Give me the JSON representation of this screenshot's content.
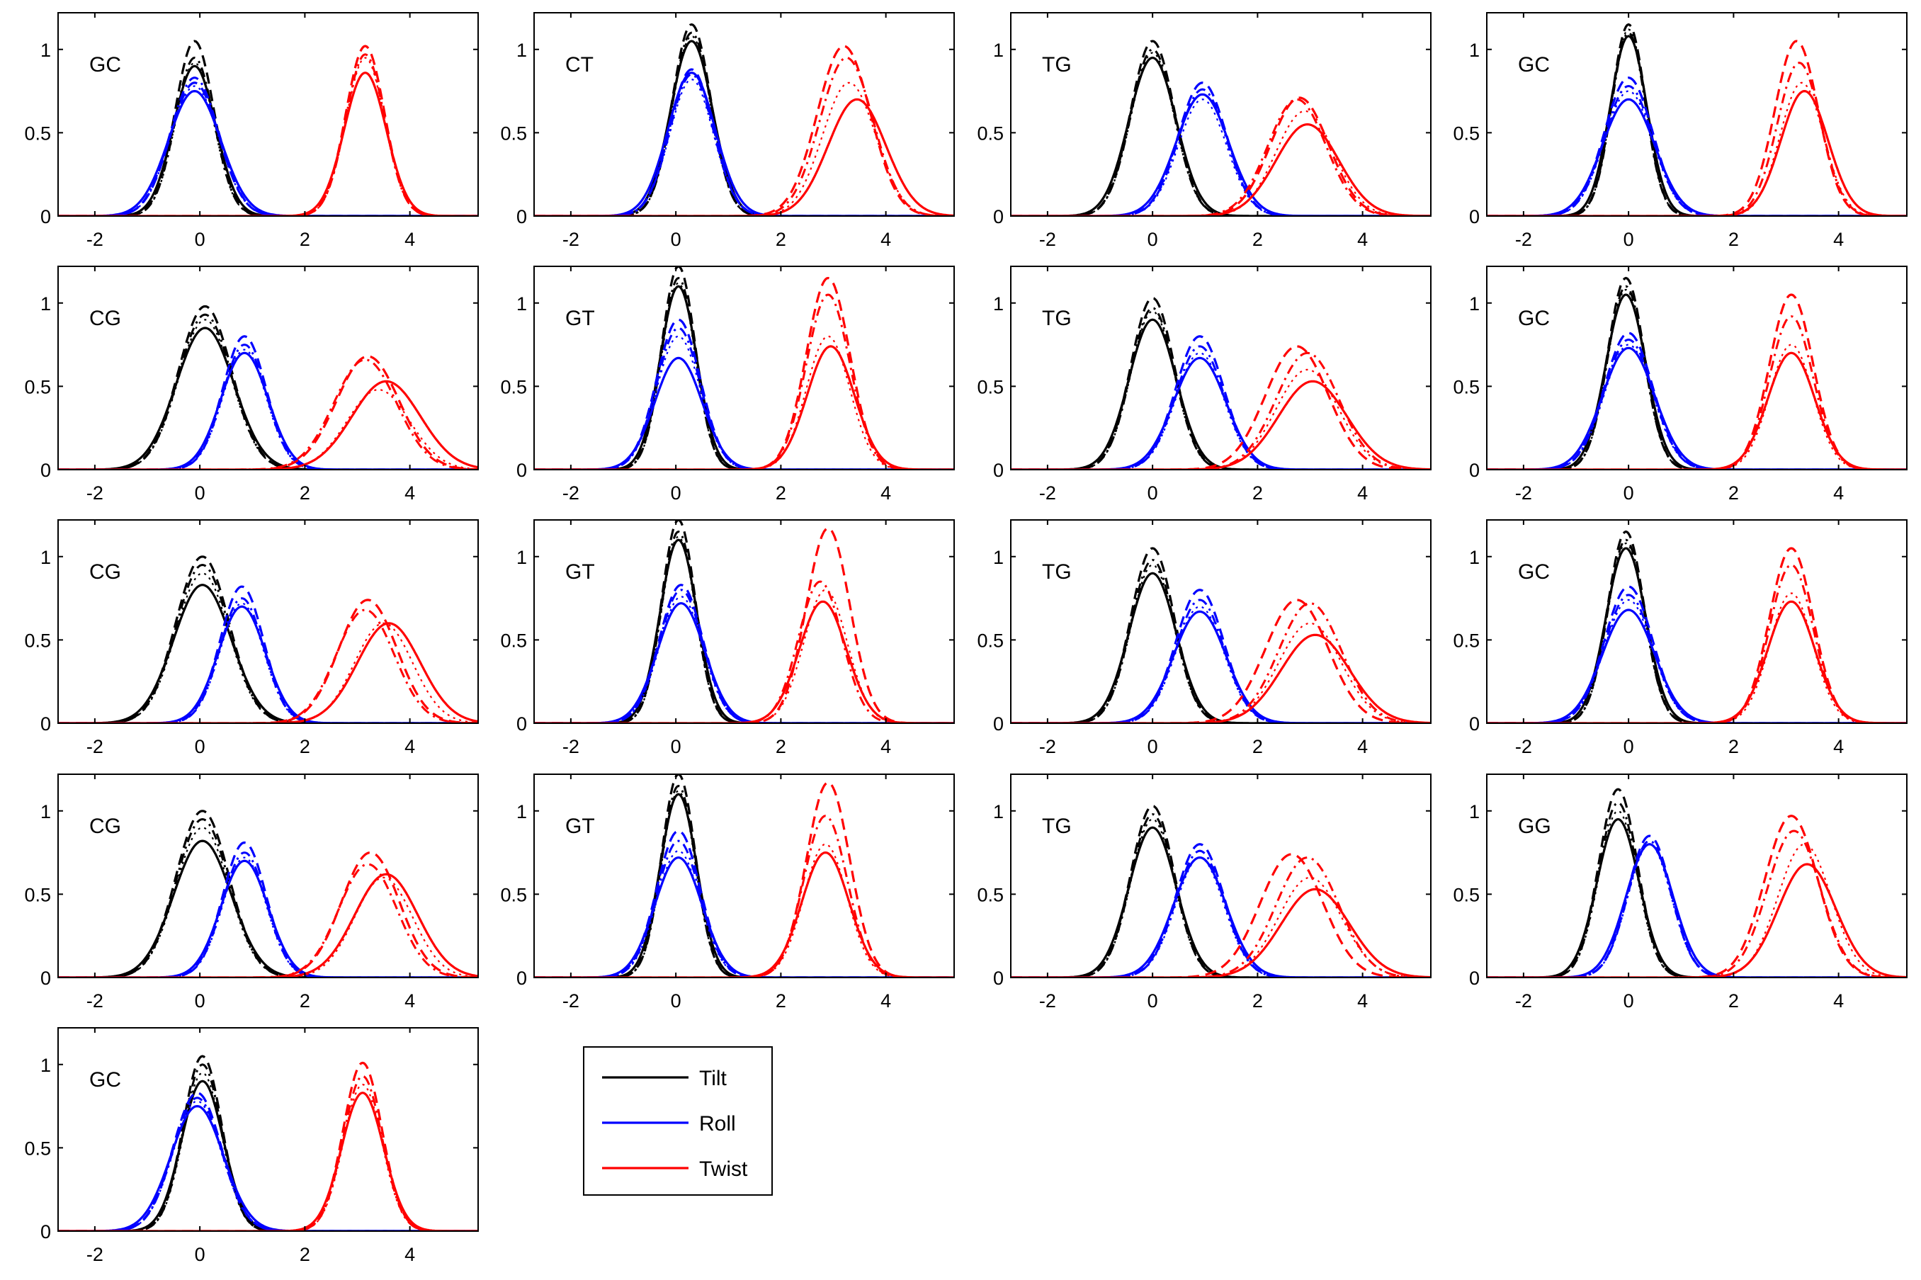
{
  "figure": {
    "series": [
      {
        "name": "Tilt",
        "color": "#000000"
      },
      {
        "name": "Roll",
        "color": "#0000ff"
      },
      {
        "name": "Twist",
        "color": "#ff0000"
      }
    ]
  },
  "chart_data": {
    "type": "line",
    "grid": false,
    "legend_placement": "bottom (standalone box beside last panel)",
    "xlim": [
      -2.7,
      5.3
    ],
    "ylim": [
      0,
      1.22
    ],
    "xticks": [
      -2,
      0,
      2,
      4
    ],
    "yticks": [
      0,
      0.5,
      1
    ],
    "line_styles": [
      "solid",
      "dashed",
      "dash-dot",
      "dotted"
    ],
    "panels": [
      {
        "label": "GC",
        "tilt": {
          "mu": -0.1,
          "sigma": 0.4,
          "peaks": [
            0.9,
            1.05,
            0.95,
            0.92
          ]
        },
        "roll": {
          "mu": -0.1,
          "sigma": 0.5,
          "peaks": [
            0.75,
            0.8,
            0.83,
            0.78
          ]
        },
        "twist": {
          "mu": 3.15,
          "sigma": 0.4,
          "peaks": [
            0.86,
            1.02,
            0.97,
            0.95
          ],
          "shifts": [
            0,
            0,
            0,
            0
          ]
        }
      },
      {
        "label": "CT",
        "tilt": {
          "mu": 0.3,
          "sigma": 0.4,
          "peaks": [
            1.05,
            1.15,
            1.1,
            1.08
          ]
        },
        "roll": {
          "mu": 0.3,
          "sigma": 0.45,
          "peaks": [
            0.86,
            0.88,
            0.85,
            0.82
          ]
        },
        "twist": {
          "mu": 3.3,
          "sigma": 0.55,
          "peaks": [
            0.7,
            1.02,
            0.95,
            0.8
          ],
          "shifts": [
            0.15,
            -0.1,
            -0.05,
            0
          ]
        }
      },
      {
        "label": "TG",
        "tilt": {
          "mu": 0.0,
          "sigma": 0.45,
          "peaks": [
            0.95,
            1.05,
            1.0,
            0.98
          ]
        },
        "roll": {
          "mu": 0.95,
          "sigma": 0.5,
          "peaks": [
            0.73,
            0.8,
            0.76,
            0.7
          ]
        },
        "twist": {
          "mu": 2.9,
          "sigma": 0.6,
          "peaks": [
            0.55,
            0.71,
            0.7,
            0.63
          ],
          "shifts": [
            0.05,
            -0.1,
            -0.15,
            0
          ]
        }
      },
      {
        "label": "GC",
        "tilt": {
          "mu": 0.0,
          "sigma": 0.35,
          "peaks": [
            1.08,
            1.15,
            1.1,
            1.12
          ]
        },
        "roll": {
          "mu": 0.0,
          "sigma": 0.5,
          "peaks": [
            0.7,
            0.83,
            0.78,
            0.75
          ]
        },
        "twist": {
          "mu": 3.3,
          "sigma": 0.45,
          "peaks": [
            0.75,
            1.05,
            0.92,
            0.8
          ],
          "shifts": [
            0.05,
            -0.1,
            -0.05,
            0
          ]
        }
      },
      {
        "label": "CG",
        "tilt": {
          "mu": 0.1,
          "sigma": 0.55,
          "peaks": [
            0.85,
            0.98,
            0.93,
            0.9
          ]
        },
        "roll": {
          "mu": 0.85,
          "sigma": 0.45,
          "peaks": [
            0.7,
            0.8,
            0.75,
            0.72
          ]
        },
        "twist": {
          "mu": 3.4,
          "sigma": 0.65,
          "peaks": [
            0.53,
            0.68,
            0.66,
            0.48
          ],
          "shifts": [
            0.15,
            -0.2,
            -0.25,
            0
          ]
        }
      },
      {
        "label": "GT",
        "tilt": {
          "mu": 0.05,
          "sigma": 0.35,
          "peaks": [
            1.1,
            1.22,
            1.15,
            1.12
          ]
        },
        "roll": {
          "mu": 0.05,
          "sigma": 0.45,
          "peaks": [
            0.67,
            0.9,
            0.85,
            0.8
          ]
        },
        "twist": {
          "mu": 2.9,
          "sigma": 0.45,
          "peaks": [
            0.74,
            1.15,
            1.05,
            0.8
          ],
          "shifts": [
            0.05,
            0,
            0,
            0
          ]
        }
      },
      {
        "label": "TG",
        "tilt": {
          "mu": 0.0,
          "sigma": 0.45,
          "peaks": [
            0.9,
            1.03,
            0.97,
            0.95
          ]
        },
        "roll": {
          "mu": 0.9,
          "sigma": 0.5,
          "peaks": [
            0.67,
            0.8,
            0.74,
            0.7
          ]
        },
        "twist": {
          "mu": 2.95,
          "sigma": 0.65,
          "peaks": [
            0.53,
            0.74,
            0.7,
            0.6
          ],
          "shifts": [
            0.1,
            -0.2,
            0,
            0
          ]
        }
      },
      {
        "label": "GC",
        "tilt": {
          "mu": -0.05,
          "sigma": 0.38,
          "peaks": [
            1.05,
            1.15,
            1.1,
            1.08
          ]
        },
        "roll": {
          "mu": 0.0,
          "sigma": 0.5,
          "peaks": [
            0.73,
            0.82,
            0.78,
            0.75
          ]
        },
        "twist": {
          "mu": 3.1,
          "sigma": 0.45,
          "peaks": [
            0.7,
            1.05,
            0.92,
            0.75
          ],
          "shifts": [
            0,
            0,
            0,
            0
          ]
        }
      },
      {
        "label": "CG",
        "tilt": {
          "mu": 0.05,
          "sigma": 0.55,
          "peaks": [
            0.83,
            1.0,
            0.95,
            0.9
          ]
        },
        "roll": {
          "mu": 0.8,
          "sigma": 0.45,
          "peaks": [
            0.7,
            0.82,
            0.75,
            0.72
          ]
        },
        "twist": {
          "mu": 3.5,
          "sigma": 0.6,
          "peaks": [
            0.6,
            0.74,
            0.68,
            0.6
          ],
          "shifts": [
            0.1,
            -0.3,
            -0.35,
            0
          ]
        }
      },
      {
        "label": "GT",
        "tilt": {
          "mu": 0.05,
          "sigma": 0.35,
          "peaks": [
            1.1,
            1.22,
            1.15,
            1.12
          ]
        },
        "roll": {
          "mu": 0.1,
          "sigma": 0.45,
          "peaks": [
            0.72,
            0.83,
            0.8,
            0.76
          ]
        },
        "twist": {
          "mu": 2.85,
          "sigma": 0.45,
          "peaks": [
            0.73,
            1.17,
            0.85,
            0.8
          ],
          "shifts": [
            -0.05,
            0.05,
            -0.1,
            0
          ]
        }
      },
      {
        "label": "TG",
        "tilt": {
          "mu": 0.0,
          "sigma": 0.45,
          "peaks": [
            0.9,
            1.05,
            0.98,
            0.95
          ]
        },
        "roll": {
          "mu": 0.9,
          "sigma": 0.5,
          "peaks": [
            0.67,
            0.8,
            0.74,
            0.7
          ]
        },
        "twist": {
          "mu": 3.0,
          "sigma": 0.65,
          "peaks": [
            0.53,
            0.74,
            0.72,
            0.6
          ],
          "shifts": [
            0.1,
            -0.25,
            0,
            0
          ]
        }
      },
      {
        "label": "GC",
        "tilt": {
          "mu": -0.05,
          "sigma": 0.38,
          "peaks": [
            1.05,
            1.15,
            1.1,
            1.08
          ]
        },
        "roll": {
          "mu": 0.0,
          "sigma": 0.5,
          "peaks": [
            0.68,
            0.82,
            0.77,
            0.74
          ]
        },
        "twist": {
          "mu": 3.1,
          "sigma": 0.45,
          "peaks": [
            0.73,
            1.05,
            0.95,
            0.78
          ],
          "shifts": [
            0,
            0,
            0,
            0
          ]
        }
      },
      {
        "label": "CG",
        "tilt": {
          "mu": 0.05,
          "sigma": 0.55,
          "peaks": [
            0.82,
            1.0,
            0.95,
            0.9
          ]
        },
        "roll": {
          "mu": 0.85,
          "sigma": 0.45,
          "peaks": [
            0.7,
            0.81,
            0.75,
            0.72
          ]
        },
        "twist": {
          "mu": 3.5,
          "sigma": 0.6,
          "peaks": [
            0.62,
            0.75,
            0.68,
            0.6
          ],
          "shifts": [
            0.05,
            -0.25,
            -0.3,
            0
          ]
        }
      },
      {
        "label": "GT",
        "tilt": {
          "mu": 0.05,
          "sigma": 0.35,
          "peaks": [
            1.1,
            1.22,
            1.15,
            1.12
          ]
        },
        "roll": {
          "mu": 0.05,
          "sigma": 0.45,
          "peaks": [
            0.72,
            0.88,
            0.82,
            0.76
          ]
        },
        "twist": {
          "mu": 2.85,
          "sigma": 0.45,
          "peaks": [
            0.75,
            1.17,
            0.97,
            0.8
          ],
          "shifts": [
            0,
            0.05,
            0,
            0
          ]
        }
      },
      {
        "label": "TG",
        "tilt": {
          "mu": 0.0,
          "sigma": 0.45,
          "peaks": [
            0.9,
            1.03,
            0.98,
            0.95
          ]
        },
        "roll": {
          "mu": 0.9,
          "sigma": 0.5,
          "peaks": [
            0.72,
            0.8,
            0.76,
            0.72
          ]
        },
        "twist": {
          "mu": 3.0,
          "sigma": 0.65,
          "peaks": [
            0.53,
            0.74,
            0.72,
            0.6
          ],
          "shifts": [
            0.1,
            -0.35,
            -0.05,
            0
          ]
        }
      },
      {
        "label": "GG",
        "tilt": {
          "mu": -0.2,
          "sigma": 0.4,
          "peaks": [
            0.95,
            1.13,
            1.05,
            1.0
          ]
        },
        "roll": {
          "mu": 0.4,
          "sigma": 0.45,
          "peaks": [
            0.8,
            0.85,
            0.82,
            0.8
          ]
        },
        "twist": {
          "mu": 3.35,
          "sigma": 0.55,
          "peaks": [
            0.68,
            0.97,
            0.88,
            0.8
          ],
          "shifts": [
            0.05,
            -0.25,
            -0.2,
            0
          ]
        }
      },
      {
        "label": "GC",
        "tilt": {
          "mu": 0.05,
          "sigma": 0.4,
          "peaks": [
            0.9,
            1.05,
            1.0,
            0.95
          ]
        },
        "roll": {
          "mu": -0.05,
          "sigma": 0.5,
          "peaks": [
            0.75,
            0.83,
            0.8,
            0.78
          ]
        },
        "twist": {
          "mu": 3.1,
          "sigma": 0.4,
          "peaks": [
            0.83,
            1.01,
            0.93,
            0.88
          ],
          "shifts": [
            0,
            0,
            0,
            0
          ]
        }
      }
    ]
  }
}
